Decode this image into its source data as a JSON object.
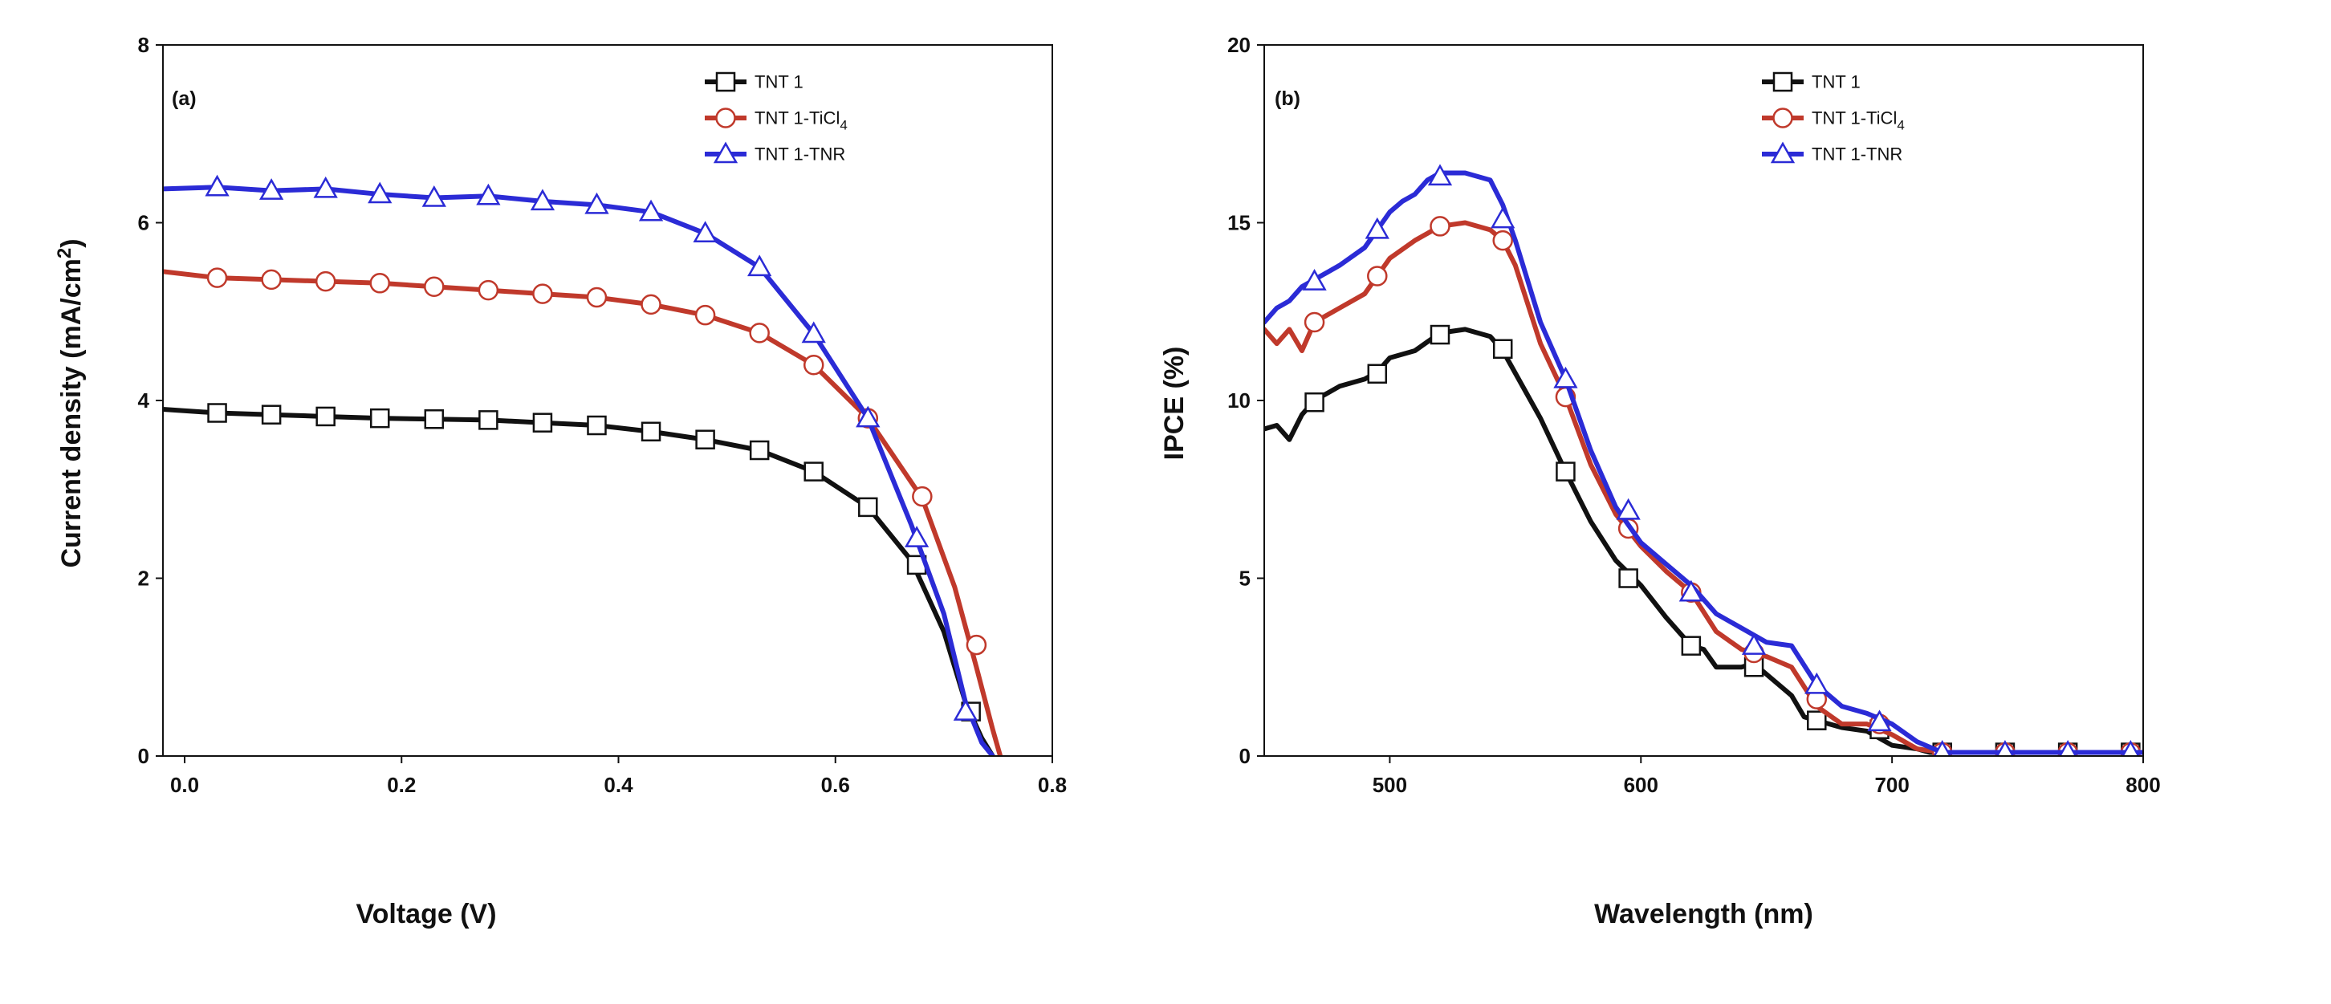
{
  "chart_data": [
    {
      "type": "line",
      "panel_label": "(a)",
      "xlabel": "Voltage (V)",
      "ylabel": {
        "main": "Current density (mA/cm",
        "sup": "2",
        "end": ")"
      },
      "xlim": [
        -0.02,
        0.8
      ],
      "ylim": [
        0,
        8
      ],
      "xticks": [
        {
          "value": 0.0,
          "label": "0.0"
        },
        {
          "value": 0.2,
          "label": "0.2"
        },
        {
          "value": 0.4,
          "label": "0.4"
        },
        {
          "value": 0.6,
          "label": "0.6"
        },
        {
          "value": 0.8,
          "label": "0.8"
        }
      ],
      "yticks": [
        {
          "value": 0,
          "label": "0"
        },
        {
          "value": 2,
          "label": "2"
        },
        {
          "value": 4,
          "label": "4"
        },
        {
          "value": 6,
          "label": "6"
        },
        {
          "value": 8,
          "label": "8"
        }
      ],
      "legend_position": "top-right",
      "series": [
        {
          "name": "TNT 1",
          "legend": {
            "text": "TNT 1",
            "sub": ""
          },
          "color": "#111111",
          "marker": "square",
          "x": [
            -0.02,
            0.03,
            0.08,
            0.13,
            0.18,
            0.23,
            0.28,
            0.33,
            0.38,
            0.43,
            0.48,
            0.53,
            0.58,
            0.63,
            0.67,
            0.7,
            0.72,
            0.735,
            0.745
          ],
          "y": [
            3.9,
            3.86,
            3.84,
            3.82,
            3.8,
            3.79,
            3.78,
            3.75,
            3.72,
            3.65,
            3.56,
            3.44,
            3.2,
            2.8,
            2.2,
            1.4,
            0.6,
            0.2,
            0
          ],
          "marker_x": [
            0.03,
            0.08,
            0.13,
            0.18,
            0.23,
            0.28,
            0.33,
            0.38,
            0.43,
            0.48,
            0.53,
            0.58,
            0.63,
            0.675,
            0.725
          ],
          "marker_y": [
            3.86,
            3.84,
            3.82,
            3.8,
            3.79,
            3.78,
            3.75,
            3.72,
            3.65,
            3.56,
            3.44,
            3.2,
            2.8,
            2.15,
            0.5
          ]
        },
        {
          "name": "TNT 1-TiCl4",
          "legend": {
            "text": "TNT 1-TiCl",
            "sub": "4"
          },
          "color": "#c0392b",
          "marker": "circle",
          "x": [
            -0.02,
            0.03,
            0.08,
            0.13,
            0.18,
            0.23,
            0.28,
            0.33,
            0.38,
            0.43,
            0.48,
            0.53,
            0.58,
            0.63,
            0.68,
            0.71,
            0.73,
            0.745,
            0.752
          ],
          "y": [
            5.45,
            5.38,
            5.36,
            5.34,
            5.32,
            5.28,
            5.24,
            5.2,
            5.16,
            5.08,
            4.96,
            4.76,
            4.4,
            3.8,
            2.9,
            1.9,
            1.0,
            0.3,
            0
          ],
          "marker_x": [
            0.03,
            0.08,
            0.13,
            0.18,
            0.23,
            0.28,
            0.33,
            0.38,
            0.43,
            0.48,
            0.53,
            0.58,
            0.63,
            0.68,
            0.73
          ],
          "marker_y": [
            5.38,
            5.36,
            5.34,
            5.32,
            5.28,
            5.24,
            5.2,
            5.16,
            5.08,
            4.96,
            4.76,
            4.4,
            3.8,
            2.92,
            1.25
          ]
        },
        {
          "name": "TNT 1-TNR",
          "legend": {
            "text": "TNT 1-TNR",
            "sub": ""
          },
          "color": "#2b2bd6",
          "marker": "triangle",
          "x": [
            -0.02,
            0.03,
            0.08,
            0.13,
            0.18,
            0.23,
            0.28,
            0.33,
            0.38,
            0.43,
            0.48,
            0.53,
            0.58,
            0.63,
            0.67,
            0.7,
            0.72,
            0.735,
            0.745
          ],
          "y": [
            6.38,
            6.4,
            6.36,
            6.38,
            6.32,
            6.28,
            6.3,
            6.24,
            6.2,
            6.12,
            5.88,
            5.5,
            4.75,
            3.8,
            2.6,
            1.6,
            0.6,
            0.15,
            0
          ],
          "marker_x": [
            0.03,
            0.08,
            0.13,
            0.18,
            0.23,
            0.28,
            0.33,
            0.38,
            0.43,
            0.48,
            0.53,
            0.58,
            0.63,
            0.675,
            0.72
          ],
          "marker_y": [
            6.4,
            6.36,
            6.38,
            6.32,
            6.28,
            6.3,
            6.24,
            6.2,
            6.12,
            5.88,
            5.5,
            4.75,
            3.8,
            2.45,
            0.5
          ]
        }
      ]
    },
    {
      "type": "line",
      "panel_label": "(b)",
      "xlabel": "Wavelength (nm)",
      "ylabel": {
        "main": "IPCE (%)",
        "sup": "",
        "end": ""
      },
      "xlim": [
        450,
        800
      ],
      "ylim": [
        0,
        20
      ],
      "xticks": [
        {
          "value": 500,
          "label": "500"
        },
        {
          "value": 600,
          "label": "600"
        },
        {
          "value": 700,
          "label": "700"
        },
        {
          "value": 800,
          "label": "800"
        }
      ],
      "yticks": [
        {
          "value": 0,
          "label": "0"
        },
        {
          "value": 5,
          "label": "5"
        },
        {
          "value": 10,
          "label": "10"
        },
        {
          "value": 15,
          "label": "15"
        },
        {
          "value": 20,
          "label": "20"
        }
      ],
      "legend_position": "top-right",
      "series": [
        {
          "name": "TNT 1",
          "legend": {
            "text": "TNT 1",
            "sub": ""
          },
          "color": "#111111",
          "marker": "square",
          "x": [
            450,
            455,
            460,
            465,
            470,
            480,
            490,
            495,
            500,
            510,
            520,
            530,
            540,
            545,
            560,
            570,
            580,
            590,
            600,
            610,
            620,
            625,
            630,
            640,
            645,
            650,
            660,
            665,
            670,
            680,
            690,
            700,
            710,
            715,
            720,
            740,
            760,
            780,
            800
          ],
          "y": [
            9.2,
            9.3,
            8.9,
            9.6,
            10.0,
            10.4,
            10.6,
            10.8,
            11.2,
            11.4,
            11.9,
            12.0,
            11.8,
            11.4,
            9.5,
            8.0,
            6.6,
            5.5,
            4.8,
            3.9,
            3.1,
            3.0,
            2.5,
            2.5,
            2.6,
            2.3,
            1.7,
            1.1,
            1.0,
            0.8,
            0.7,
            0.3,
            0.2,
            0.1,
            0.1,
            0.1,
            0.1,
            0.1,
            0.1
          ],
          "marker_x": [
            470,
            495,
            520,
            545,
            570,
            595,
            620,
            645,
            670,
            695,
            720,
            745,
            770,
            795
          ],
          "marker_y": [
            9.95,
            10.75,
            11.85,
            11.45,
            8.0,
            5.0,
            3.1,
            2.5,
            1.0,
            0.75,
            0.1,
            0.1,
            0.1,
            0.1
          ]
        },
        {
          "name": "TNT 1-TiCl4",
          "legend": {
            "text": "TNT 1-TiCl",
            "sub": "4"
          },
          "color": "#c0392b",
          "marker": "circle",
          "x": [
            450,
            455,
            460,
            465,
            470,
            480,
            490,
            495,
            500,
            510,
            520,
            530,
            540,
            545,
            550,
            560,
            570,
            580,
            590,
            600,
            610,
            620,
            630,
            640,
            650,
            660,
            670,
            680,
            690,
            700,
            710,
            720,
            740,
            760,
            780,
            800
          ],
          "y": [
            12.0,
            11.6,
            12.0,
            11.4,
            12.2,
            12.6,
            13.0,
            13.5,
            14.0,
            14.5,
            14.9,
            15.0,
            14.8,
            14.5,
            13.8,
            11.6,
            10.1,
            8.2,
            6.8,
            5.9,
            5.2,
            4.6,
            3.5,
            3.0,
            2.8,
            2.5,
            1.4,
            0.9,
            0.9,
            0.6,
            0.2,
            0.1,
            0.1,
            0.1,
            0.1,
            0.1
          ],
          "marker_x": [
            470,
            495,
            520,
            545,
            570,
            595,
            620,
            645,
            670,
            695,
            720,
            745,
            770,
            795
          ],
          "marker_y": [
            12.2,
            13.5,
            14.9,
            14.5,
            10.1,
            6.4,
            4.6,
            2.9,
            1.6,
            0.9,
            0.1,
            0.1,
            0.1,
            0.1
          ]
        },
        {
          "name": "TNT 1-TNR",
          "legend": {
            "text": "TNT 1-TNR",
            "sub": ""
          },
          "color": "#2b2bd6",
          "marker": "triangle",
          "x": [
            450,
            455,
            460,
            465,
            470,
            480,
            490,
            495,
            500,
            505,
            510,
            515,
            520,
            530,
            540,
            545,
            550,
            560,
            570,
            580,
            590,
            600,
            610,
            620,
            630,
            640,
            650,
            660,
            670,
            680,
            690,
            700,
            710,
            720,
            740,
            760,
            780,
            800
          ],
          "y": [
            12.2,
            12.6,
            12.8,
            13.2,
            13.4,
            13.8,
            14.3,
            14.8,
            15.3,
            15.6,
            15.8,
            16.2,
            16.4,
            16.4,
            16.2,
            15.5,
            14.5,
            12.2,
            10.6,
            8.6,
            7.0,
            6.0,
            5.4,
            4.8,
            4.0,
            3.6,
            3.2,
            3.1,
            2.0,
            1.4,
            1.2,
            0.9,
            0.4,
            0.1,
            0.1,
            0.1,
            0.1,
            0.1
          ],
          "marker_x": [
            470,
            495,
            520,
            545,
            570,
            595,
            620,
            645,
            670,
            695,
            720,
            745,
            770,
            795
          ],
          "marker_y": [
            13.35,
            14.8,
            16.3,
            15.1,
            10.6,
            6.9,
            4.6,
            3.1,
            2.0,
            0.95,
            0.1,
            0.1,
            0.1,
            0.1
          ]
        }
      ]
    }
  ]
}
